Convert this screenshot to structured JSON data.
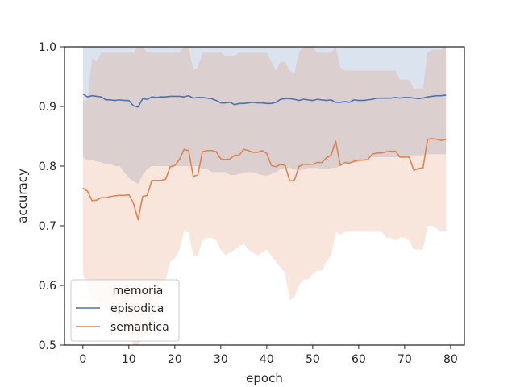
{
  "chart_data": {
    "type": "line",
    "xlabel": "epoch",
    "ylabel": "accuracy",
    "xlim": [
      -4,
      83
    ],
    "ylim": [
      0.5,
      1.0
    ],
    "xticks": [
      "0",
      "10",
      "20",
      "30",
      "40",
      "50",
      "60",
      "70",
      "80"
    ],
    "yticks": [
      "0.5",
      "0.6",
      "0.7",
      "0.8",
      "0.9",
      "1.0"
    ],
    "grid": false,
    "legend": {
      "title": "memoria",
      "placement": "lower-left"
    },
    "series": [
      {
        "name": "episodica",
        "color": "#4c72b0",
        "x": [
          0,
          1,
          2,
          3,
          4,
          5,
          6,
          7,
          8,
          9,
          10,
          11,
          12,
          13,
          14,
          15,
          16,
          17,
          18,
          19,
          20,
          21,
          22,
          23,
          24,
          25,
          26,
          27,
          28,
          29,
          30,
          31,
          32,
          33,
          34,
          35,
          36,
          37,
          38,
          39,
          40,
          41,
          42,
          43,
          44,
          45,
          46,
          47,
          48,
          49,
          50,
          51,
          52,
          53,
          54,
          55,
          56,
          57,
          58,
          59,
          60,
          61,
          62,
          63,
          64,
          65,
          66,
          67,
          68,
          69,
          70,
          71,
          72,
          73,
          74,
          75,
          76,
          77,
          78,
          79
        ],
        "values": [
          0.921,
          0.916,
          0.918,
          0.917,
          0.916,
          0.911,
          0.911,
          0.91,
          0.911,
          0.91,
          0.91,
          0.901,
          0.899,
          0.913,
          0.912,
          0.916,
          0.915,
          0.916,
          0.916,
          0.917,
          0.917,
          0.917,
          0.916,
          0.918,
          0.914,
          0.915,
          0.915,
          0.914,
          0.913,
          0.91,
          0.906,
          0.906,
          0.907,
          0.903,
          0.905,
          0.905,
          0.906,
          0.907,
          0.906,
          0.906,
          0.905,
          0.905,
          0.907,
          0.912,
          0.913,
          0.913,
          0.912,
          0.91,
          0.912,
          0.911,
          0.91,
          0.912,
          0.911,
          0.91,
          0.911,
          0.907,
          0.907,
          0.908,
          0.907,
          0.911,
          0.91,
          0.91,
          0.911,
          0.912,
          0.914,
          0.914,
          0.914,
          0.914,
          0.915,
          0.914,
          0.915,
          0.915,
          0.914,
          0.913,
          0.914,
          0.916,
          0.917,
          0.918,
          0.918,
          0.919
        ],
        "ci_upper": [
          1.0,
          1.0,
          1.0,
          1.0,
          1.0,
          1.0,
          1.0,
          1.0,
          1.0,
          1.0,
          1.0,
          1.0,
          1.0,
          1.0,
          1.0,
          1.0,
          1.0,
          1.0,
          1.0,
          1.0,
          1.0,
          1.0,
          1.0,
          1.0,
          1.0,
          1.0,
          1.0,
          1.0,
          1.0,
          1.0,
          1.0,
          1.0,
          1.0,
          1.0,
          1.0,
          1.0,
          1.0,
          1.0,
          1.0,
          1.0,
          1.0,
          1.0,
          1.0,
          1.0,
          1.0,
          1.0,
          1.0,
          1.0,
          1.0,
          1.0,
          1.0,
          1.0,
          1.0,
          1.0,
          1.0,
          1.0,
          1.0,
          1.0,
          1.0,
          1.0,
          1.0,
          1.0,
          1.0,
          1.0,
          1.0,
          1.0,
          1.0,
          1.0,
          1.0,
          1.0,
          1.0,
          1.0,
          1.0,
          1.0,
          1.0,
          1.0,
          1.0,
          1.0,
          1.0,
          1.0
        ],
        "ci_lower": [
          0.815,
          0.81,
          0.81,
          0.808,
          0.806,
          0.803,
          0.803,
          0.8,
          0.8,
          0.79,
          0.78,
          0.775,
          0.77,
          0.785,
          0.795,
          0.8,
          0.8,
          0.8,
          0.8,
          0.8,
          0.8,
          0.8,
          0.8,
          0.8,
          0.8,
          0.8,
          0.795,
          0.795,
          0.79,
          0.79,
          0.79,
          0.79,
          0.785,
          0.785,
          0.787,
          0.788,
          0.79,
          0.79,
          0.787,
          0.785,
          0.784,
          0.787,
          0.79,
          0.795,
          0.797,
          0.797,
          0.795,
          0.792,
          0.795,
          0.797,
          0.797,
          0.797,
          0.795,
          0.795,
          0.797,
          0.797,
          0.8,
          0.805,
          0.805,
          0.806,
          0.807,
          0.81,
          0.813,
          0.815,
          0.815,
          0.815,
          0.815,
          0.815,
          0.815,
          0.815,
          0.817,
          0.817,
          0.818,
          0.818,
          0.818,
          0.82,
          0.82,
          0.82,
          0.82,
          0.82
        ]
      },
      {
        "name": "semantica",
        "color": "#dd8452",
        "x": [
          0,
          1,
          2,
          3,
          4,
          5,
          6,
          7,
          8,
          9,
          10,
          11,
          12,
          13,
          14,
          15,
          16,
          17,
          18,
          19,
          20,
          21,
          22,
          23,
          24,
          25,
          26,
          27,
          28,
          29,
          30,
          31,
          32,
          33,
          34,
          35,
          36,
          37,
          38,
          39,
          40,
          41,
          42,
          43,
          44,
          45,
          46,
          47,
          48,
          49,
          50,
          51,
          52,
          53,
          54,
          55,
          56,
          57,
          58,
          59,
          60,
          61,
          62,
          63,
          64,
          65,
          66,
          67,
          68,
          69,
          70,
          71,
          72,
          73,
          74,
          75,
          76,
          77,
          78,
          79
        ],
        "values": [
          0.763,
          0.758,
          0.742,
          0.743,
          0.747,
          0.747,
          0.749,
          0.75,
          0.751,
          0.751,
          0.752,
          0.738,
          0.71,
          0.749,
          0.751,
          0.776,
          0.776,
          0.776,
          0.778,
          0.799,
          0.801,
          0.811,
          0.828,
          0.826,
          0.783,
          0.785,
          0.824,
          0.826,
          0.826,
          0.824,
          0.812,
          0.811,
          0.812,
          0.818,
          0.818,
          0.828,
          0.826,
          0.823,
          0.823,
          0.826,
          0.821,
          0.801,
          0.799,
          0.803,
          0.801,
          0.775,
          0.776,
          0.799,
          0.803,
          0.803,
          0.803,
          0.806,
          0.806,
          0.814,
          0.818,
          0.842,
          0.801,
          0.806,
          0.805,
          0.808,
          0.81,
          0.81,
          0.811,
          0.82,
          0.822,
          0.822,
          0.824,
          0.825,
          0.825,
          0.815,
          0.815,
          0.815,
          0.793,
          0.796,
          0.797,
          0.845,
          0.846,
          0.845,
          0.843,
          0.845
        ],
        "ci_upper": [
          0.91,
          0.91,
          0.98,
          0.975,
          0.99,
          0.99,
          0.99,
          0.99,
          0.99,
          0.99,
          0.99,
          0.99,
          1.0,
          1.0,
          0.99,
          0.99,
          0.99,
          0.99,
          0.99,
          0.99,
          0.99,
          0.99,
          1.0,
          1.0,
          0.96,
          0.965,
          0.99,
          0.99,
          0.99,
          0.99,
          0.99,
          0.985,
          0.985,
          0.985,
          0.99,
          0.99,
          0.99,
          0.99,
          0.99,
          0.99,
          0.99,
          0.975,
          0.96,
          0.975,
          0.975,
          0.96,
          0.955,
          0.99,
          1.0,
          1.0,
          1.0,
          0.99,
          0.99,
          0.99,
          0.99,
          1.0,
          0.965,
          0.96,
          0.96,
          0.96,
          0.96,
          0.96,
          0.96,
          0.96,
          0.96,
          0.96,
          0.96,
          0.96,
          0.96,
          0.945,
          0.945,
          0.945,
          0.93,
          0.93,
          0.93,
          0.99,
          0.995,
          0.995,
          0.995,
          1.0
        ],
        "ci_lower": [
          0.62,
          0.6,
          0.58,
          0.575,
          0.57,
          0.56,
          0.56,
          0.55,
          0.54,
          0.53,
          0.52,
          0.5,
          0.5,
          0.51,
          0.52,
          0.55,
          0.56,
          0.6,
          0.61,
          0.64,
          0.645,
          0.66,
          0.69,
          0.689,
          0.65,
          0.65,
          0.675,
          0.68,
          0.68,
          0.675,
          0.66,
          0.65,
          0.655,
          0.66,
          0.665,
          0.67,
          0.66,
          0.655,
          0.65,
          0.655,
          0.66,
          0.65,
          0.64,
          0.63,
          0.62,
          0.575,
          0.58,
          0.6,
          0.61,
          0.61,
          0.62,
          0.625,
          0.625,
          0.64,
          0.65,
          0.69,
          0.685,
          0.69,
          0.69,
          0.69,
          0.69,
          0.69,
          0.69,
          0.69,
          0.69,
          0.69,
          0.68,
          0.68,
          0.675,
          0.68,
          0.68,
          0.675,
          0.66,
          0.66,
          0.66,
          0.7,
          0.7,
          0.695,
          0.69,
          0.69
        ]
      }
    ]
  }
}
